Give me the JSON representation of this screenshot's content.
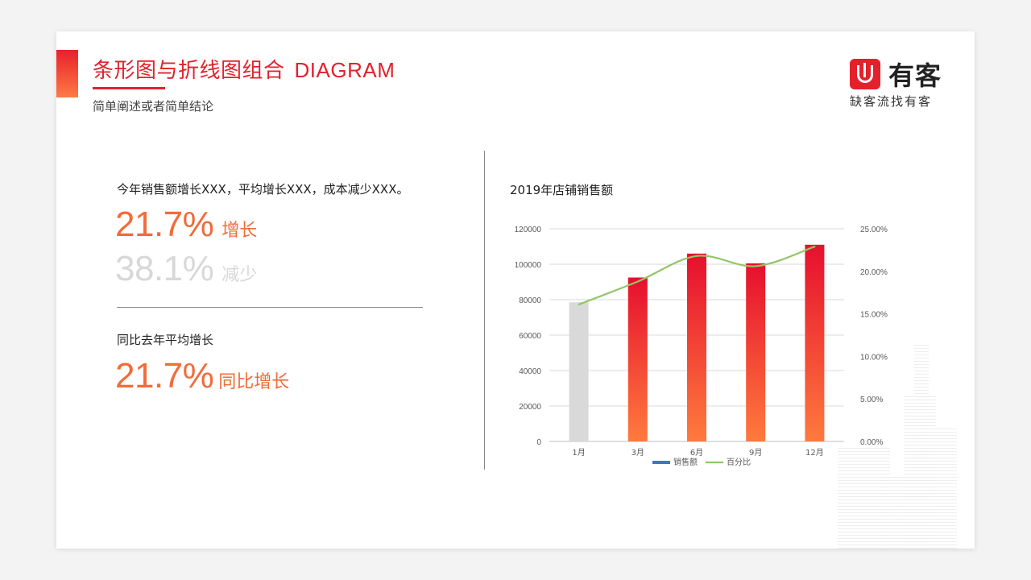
{
  "header": {
    "title_cn": "条形图与折线图组合",
    "title_en": "DIAGRAM",
    "subtitle": "简单阐述或者简单结论"
  },
  "logo": {
    "name": "有客",
    "tagline": "缺客流找有客"
  },
  "left": {
    "summary": "今年销售额增长XXX，平均增长XXX，成本减少XXX。",
    "stat1_value": "21.7%",
    "stat1_label": "增长",
    "stat2_value": "38.1%",
    "stat2_label": "减少",
    "caption": "同比去年平均增长",
    "stat3_value": "21.7%",
    "stat3_label": "同比增长"
  },
  "colors": {
    "accent": "#e3212b",
    "orange": "#f26b3a",
    "bar_top": "#e60f2e",
    "bar_bottom": "#ff7a3d",
    "bar_gray": "#d9d9d9",
    "line": "#92c567",
    "legend_bar": "#4472c4"
  },
  "chart_data": {
    "type": "bar",
    "title": "2019年店铺销售额",
    "categories": [
      "1月",
      "3月",
      "6月",
      "9月",
      "12月"
    ],
    "series": [
      {
        "name": "销售额",
        "kind": "bar",
        "axis": "left",
        "values": [
          78500,
          92500,
          106000,
          100500,
          111000
        ]
      },
      {
        "name": "百分比",
        "kind": "line",
        "axis": "right",
        "values": [
          0.161,
          0.188,
          0.218,
          0.206,
          0.229
        ]
      }
    ],
    "ylim": [
      0,
      120000
    ],
    "y_ticks": [
      "0",
      "20000",
      "40000",
      "60000",
      "80000",
      "100000",
      "120000"
    ],
    "y2lim": [
      0,
      0.25
    ],
    "y2_ticks": [
      "0.00%",
      "5.00%",
      "10.00%",
      "15.00%",
      "20.00%",
      "25.00%"
    ],
    "grid": true,
    "legend": "bottom"
  }
}
